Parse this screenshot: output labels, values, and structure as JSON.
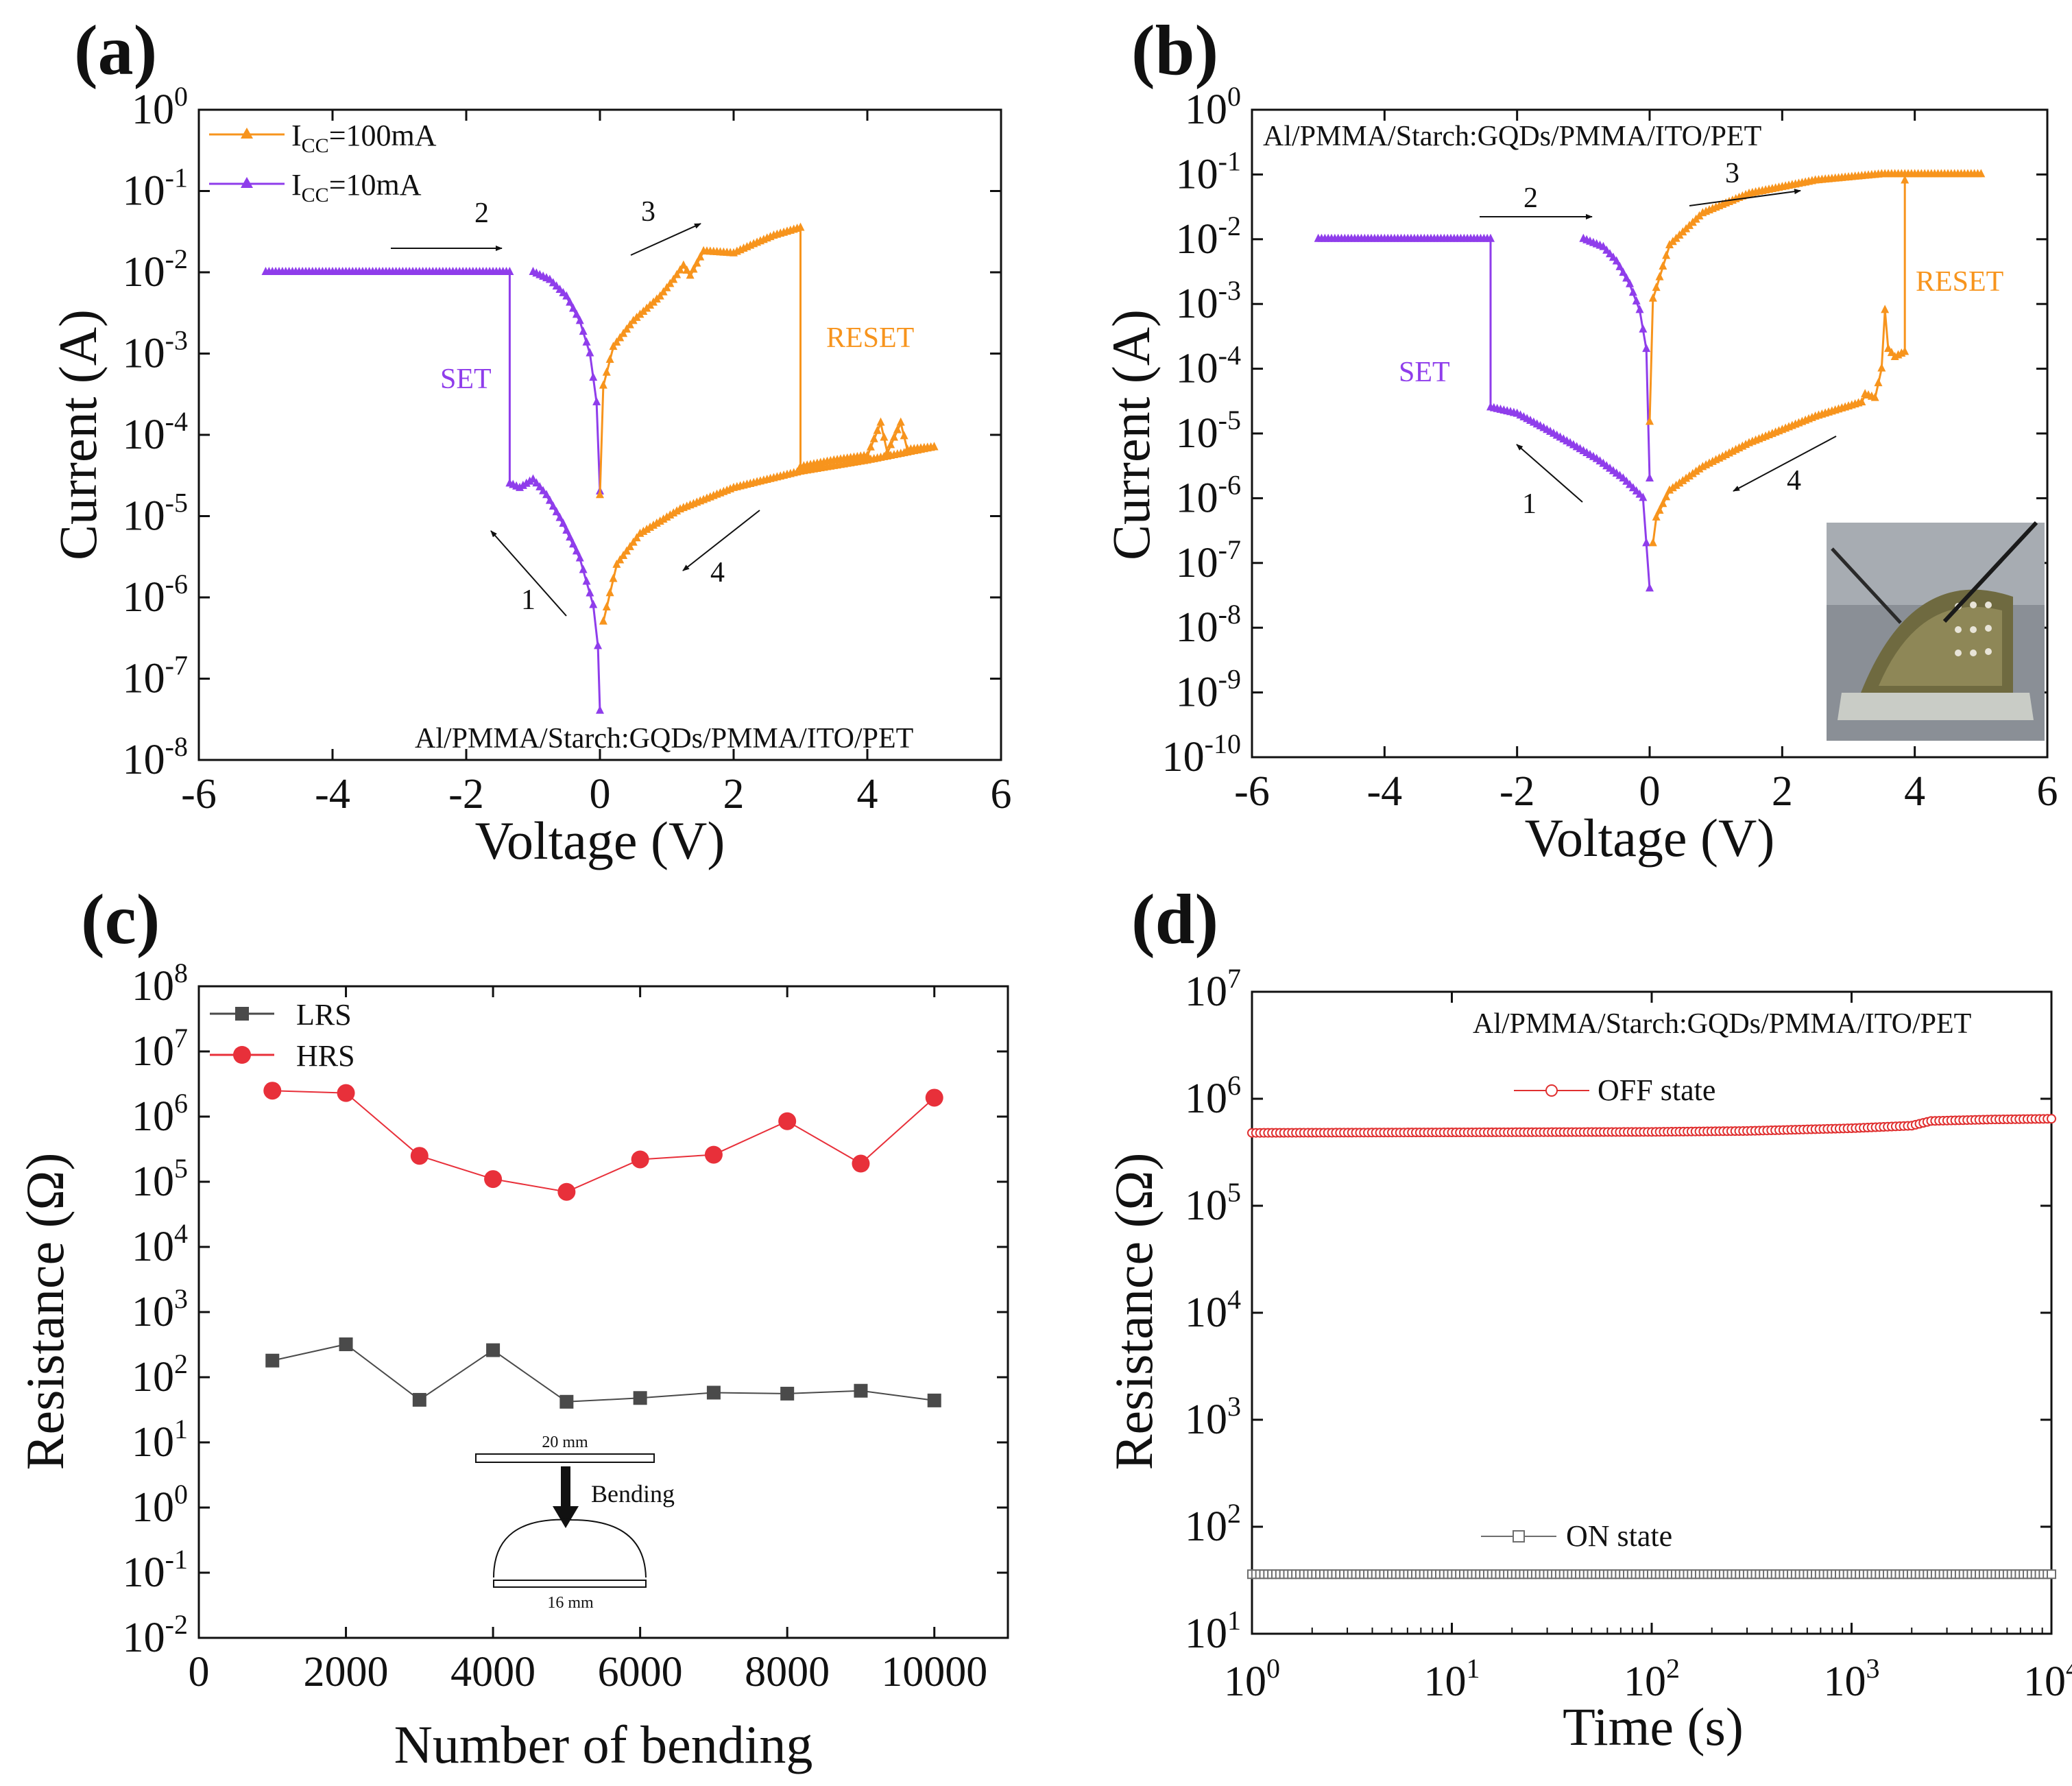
{
  "colors": {
    "orange": "#F7941D",
    "purple": "#8F3DEB",
    "red": "#E8303A",
    "gray": "#4A4A4A",
    "onstate": "#6E6E6E",
    "offstate": "#E03030"
  },
  "panels": [
    {
      "label": "(a)"
    },
    {
      "label": "(b)"
    },
    {
      "label": "(c)"
    },
    {
      "label": "(d)"
    }
  ],
  "chart_data": [
    {
      "panel": "(a)",
      "type": "line",
      "xlabel": "Voltage (V)",
      "ylabel": "Current (A)",
      "xlim": [
        -6,
        6
      ],
      "ylim_log10": [
        -8,
        0
      ],
      "x_ticks": [
        "-6",
        "-4",
        "-2",
        "0",
        "2",
        "4",
        "6"
      ],
      "y_ticks": [
        "10^0",
        "10^-1",
        "10^-2",
        "10^-3",
        "10^-4",
        "10^-5",
        "10^-6",
        "10^-7",
        "10^-8"
      ],
      "legend": [
        {
          "name": "I_CC=100mA",
          "sub": "CC",
          "label_base": "I",
          "label_rest": "=100mA",
          "color": "orange"
        },
        {
          "name": "I_CC=10mA",
          "sub": "CC",
          "label_base": "I",
          "label_rest": "=10mA",
          "color": "purple"
        }
      ],
      "device_label": "Al/PMMA/Starch:GQDs/PMMA/ITO/PET",
      "annotations": [
        {
          "text": "SET",
          "color": "purple"
        },
        {
          "text": "RESET",
          "color": "orange"
        },
        {
          "text": "1"
        },
        {
          "text": "2"
        },
        {
          "text": "3"
        },
        {
          "text": "4"
        }
      ],
      "series": [
        {
          "name": "I_CC=10mA",
          "color": "purple",
          "points": [
            [
              -5,
              0.01
            ],
            [
              -4,
              0.01
            ],
            [
              -3,
              0.01
            ],
            [
              -2,
              0.01
            ],
            [
              -1.4,
              0.01
            ],
            [
              -1.35,
              0.01
            ],
            [
              -1.35,
              2.5e-05
            ],
            [
              -1.2,
              2.2e-05
            ],
            [
              -1.0,
              2.8e-05
            ],
            [
              -0.8,
              1.8e-05
            ],
            [
              -0.55,
              8e-06
            ],
            [
              -0.3,
              3e-06
            ],
            [
              -0.1,
              8e-07
            ],
            [
              -0.03,
              2.5e-07
            ],
            [
              0,
              4e-08
            ]
          ]
        },
        {
          "name": "I_CC=10mA sweep-back",
          "color": "purple",
          "points": [
            [
              0,
              2e-05
            ],
            [
              -0.05,
              0.00025
            ],
            [
              -0.15,
              0.001
            ],
            [
              -0.3,
              0.0025
            ],
            [
              -0.5,
              0.005
            ],
            [
              -0.75,
              0.008
            ],
            [
              -1.0,
              0.01
            ]
          ]
        },
        {
          "name": "I_CC=100mA",
          "color": "orange",
          "points": [
            [
              0,
              1.8e-05
            ],
            [
              0.05,
              0.0004
            ],
            [
              0.2,
              0.0012
            ],
            [
              0.5,
              0.0025
            ],
            [
              0.9,
              0.005
            ],
            [
              1.1,
              0.008
            ],
            [
              1.25,
              0.012
            ],
            [
              1.35,
              0.009
            ],
            [
              1.55,
              0.018
            ],
            [
              2.0,
              0.017
            ],
            [
              2.3,
              0.022
            ],
            [
              2.6,
              0.028
            ],
            [
              3.0,
              0.035
            ],
            [
              3.0,
              4e-05
            ],
            [
              3.5,
              4.8e-05
            ],
            [
              4.0,
              5.5e-05
            ],
            [
              4.2,
              0.00014
            ],
            [
              4.3,
              6e-05
            ],
            [
              4.5,
              0.00014
            ],
            [
              4.6,
              6.5e-05
            ],
            [
              5.0,
              7e-05
            ]
          ]
        },
        {
          "name": "I_CC=100mA sweep-back",
          "color": "orange",
          "points": [
            [
              5,
              7e-05
            ],
            [
              4,
              4.8e-05
            ],
            [
              3,
              3.5e-05
            ],
            [
              2,
              2.2e-05
            ],
            [
              1.2,
              1.2e-05
            ],
            [
              0.6,
              6e-06
            ],
            [
              0.25,
              2.5e-06
            ],
            [
              0.05,
              5e-07
            ]
          ]
        }
      ]
    },
    {
      "panel": "(b)",
      "type": "line",
      "xlabel": "Voltage (V)",
      "ylabel": "Current (A)",
      "xlim": [
        -6,
        6
      ],
      "ylim_log10": [
        -10,
        0
      ],
      "x_ticks": [
        "-6",
        "-4",
        "-2",
        "0",
        "2",
        "4",
        "6"
      ],
      "y_ticks": [
        "10^0",
        "10^-1",
        "10^-2",
        "10^-3",
        "10^-4",
        "10^-5",
        "10^-6",
        "10^-7",
        "10^-8",
        "10^-9",
        "10^-10"
      ],
      "device_label": "Al/PMMA/Starch:GQDs/PMMA/ITO/PET",
      "annotations": [
        {
          "text": "SET",
          "color": "purple"
        },
        {
          "text": "RESET",
          "color": "orange"
        },
        {
          "text": "1"
        },
        {
          "text": "2"
        },
        {
          "text": "3"
        },
        {
          "text": "4"
        }
      ],
      "series": [
        {
          "name": "negative sweep",
          "color": "purple",
          "points": [
            [
              -5,
              0.01
            ],
            [
              -4,
              0.01
            ],
            [
              -3,
              0.01
            ],
            [
              -2.4,
              0.01
            ],
            [
              -2.4,
              2.5e-05
            ],
            [
              -2.0,
              2e-05
            ],
            [
              -1.6,
              1.2e-05
            ],
            [
              -1.2,
              7e-06
            ],
            [
              -0.8,
              4e-06
            ],
            [
              -0.4,
              2e-06
            ],
            [
              -0.1,
              1e-06
            ],
            [
              0,
              4e-08
            ]
          ]
        },
        {
          "name": "negative sweep-back",
          "color": "purple",
          "points": [
            [
              0,
              2e-06
            ],
            [
              -0.05,
              0.0002
            ],
            [
              -0.15,
              0.0008
            ],
            [
              -0.3,
              0.002
            ],
            [
              -0.5,
              0.0045
            ],
            [
              -0.7,
              0.0075
            ],
            [
              -1.0,
              0.01
            ]
          ]
        },
        {
          "name": "positive sweep",
          "color": "orange",
          "points": [
            [
              0,
              1.5e-05
            ],
            [
              0.05,
              0.0012
            ],
            [
              0.3,
              0.008
            ],
            [
              0.8,
              0.025
            ],
            [
              1.5,
              0.05
            ],
            [
              2.5,
              0.08
            ],
            [
              3.5,
              0.1
            ],
            [
              3.8,
              0.1
            ],
            [
              4.5,
              0.1
            ],
            [
              5,
              0.1
            ]
          ]
        },
        {
          "name": "positive sweep-back",
          "color": "orange",
          "points": [
            [
              3.85,
              0.08
            ],
            [
              3.85,
              0.00018
            ],
            [
              3.7,
              0.00015
            ],
            [
              3.6,
              0.0002
            ],
            [
              3.55,
              0.0008
            ],
            [
              3.5,
              0.0001
            ],
            [
              3.4,
              3.5e-05
            ],
            [
              3.25,
              4e-05
            ],
            [
              3.2,
              3e-05
            ],
            [
              2.5,
              1.8e-05
            ],
            [
              1.5,
              7e-06
            ],
            [
              0.8,
              3e-06
            ],
            [
              0.3,
              1.3e-06
            ],
            [
              0.1,
              5e-07
            ],
            [
              0.05,
              2e-07
            ]
          ]
        }
      ]
    },
    {
      "panel": "(c)",
      "type": "line",
      "xlabel": "Number of bending",
      "ylabel": "Resistance (Ω)",
      "xlim": [
        0,
        11000
      ],
      "ylim_log10": [
        -2,
        8
      ],
      "x_ticks": [
        "0",
        "2000",
        "4000",
        "6000",
        "8000",
        "10000"
      ],
      "y_ticks": [
        "10^8",
        "10^7",
        "10^6",
        "10^5",
        "10^4",
        "10^3",
        "10^2",
        "10^1",
        "10^0",
        "10^-1",
        "10^-2"
      ],
      "inset": {
        "top_length": "20 mm",
        "action": "Bending",
        "bottom_length": "16 mm"
      },
      "categories": [
        1000,
        2000,
        3000,
        4000,
        5000,
        6000,
        7000,
        8000,
        9000,
        10000
      ],
      "series": [
        {
          "name": "LRS",
          "color": "gray",
          "marker": "square",
          "values": [
            180,
            320,
            45,
            260,
            42,
            48,
            58,
            56,
            62,
            44
          ]
        },
        {
          "name": "HRS",
          "color": "red",
          "marker": "circle",
          "values": [
            2500000,
            2300000,
            250000,
            110000,
            70000,
            220000,
            260000,
            850000,
            190000,
            1950000
          ]
        }
      ]
    },
    {
      "panel": "(d)",
      "type": "line",
      "xlabel": "Time (s)",
      "ylabel": "Resistance (Ω)",
      "xscale": "log",
      "xlim_log10": [
        0,
        4
      ],
      "ylim_log10": [
        1,
        7
      ],
      "x_ticks": [
        "10^0",
        "10^1",
        "10^2",
        "10^3",
        "10^4"
      ],
      "y_ticks": [
        "10^7",
        "10^6",
        "10^5",
        "10^4",
        "10^3",
        "10^2",
        "10^1"
      ],
      "device_label": "Al/PMMA/Starch:GQDs/PMMA/ITO/PET",
      "series": [
        {
          "name": "OFF state",
          "color": "offstate",
          "marker": "open-circle",
          "points": [
            [
              1,
              480000
            ],
            [
              10,
              485000
            ],
            [
              100,
              490000
            ],
            [
              300,
              500000
            ],
            [
              1000,
              530000
            ],
            [
              2000,
              560000
            ],
            [
              2500,
              620000
            ],
            [
              5000,
              640000
            ],
            [
              10000,
              650000
            ]
          ]
        },
        {
          "name": "ON state",
          "color": "onstate",
          "marker": "open-square",
          "points": [
            [
              1,
              36
            ],
            [
              10,
              36
            ],
            [
              100,
              36
            ],
            [
              1000,
              36
            ],
            [
              10000,
              36
            ]
          ]
        }
      ]
    }
  ]
}
